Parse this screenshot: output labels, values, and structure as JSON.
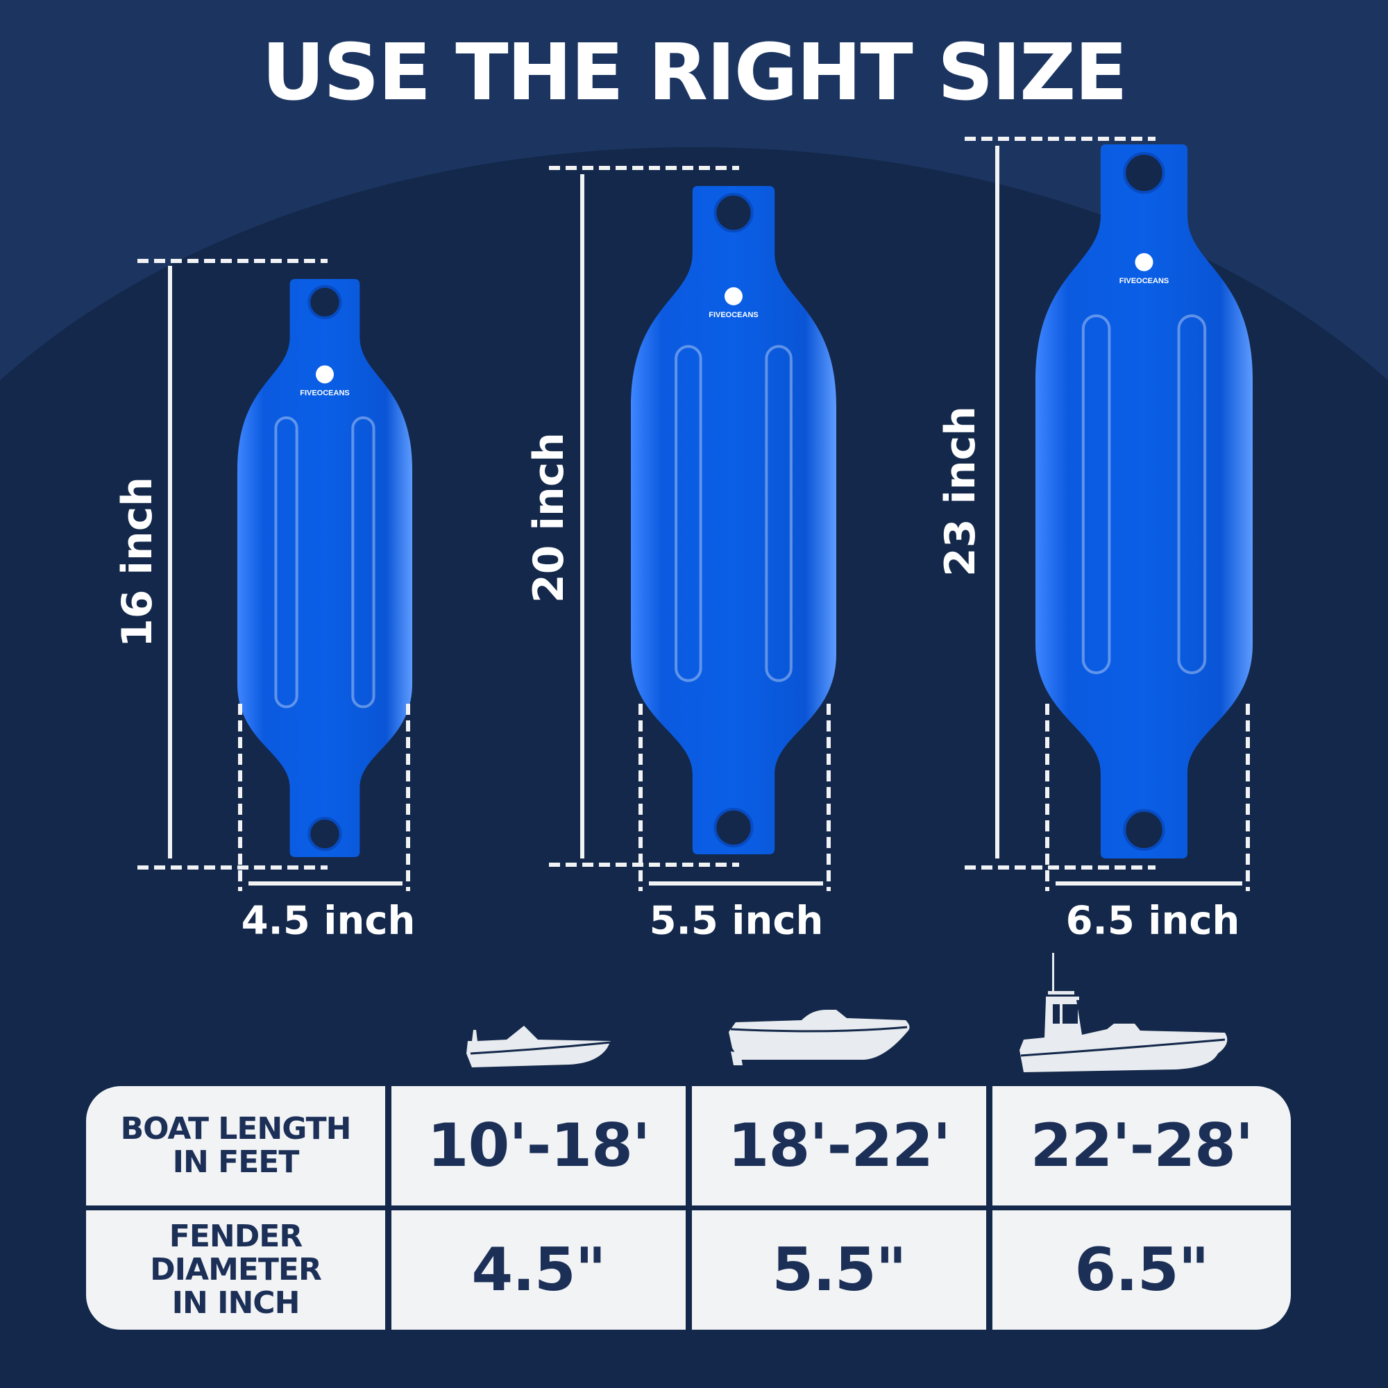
{
  "title": "USE THE RIGHT SIZE",
  "brand": "FIVEOCEANS",
  "colors": {
    "background": "#1c3560",
    "arc": "#13284a",
    "fender": "#0a5fe6",
    "table_bg": "#f2f3f5",
    "table_text": "#1b2f57"
  },
  "fenders": [
    {
      "height_label": "16 inch",
      "diameter_label": "4.5 inch"
    },
    {
      "height_label": "20 inch",
      "diameter_label": "5.5 inch"
    },
    {
      "height_label": "23 inch",
      "diameter_label": "6.5 inch"
    }
  ],
  "boats": [
    "small-bowrider-boat-icon",
    "cabin-cruiser-boat-icon",
    "pilothouse-fishing-boat-icon"
  ],
  "table": {
    "row_headers": [
      "BOAT LENGTH IN FEET",
      "FENDER DIAMETER IN INCH"
    ],
    "boat_length": [
      "10'-18'",
      "18'-22'",
      "22'-28'"
    ],
    "fender_diameter": [
      "4.5\"",
      "5.5\"",
      "6.5\""
    ]
  }
}
